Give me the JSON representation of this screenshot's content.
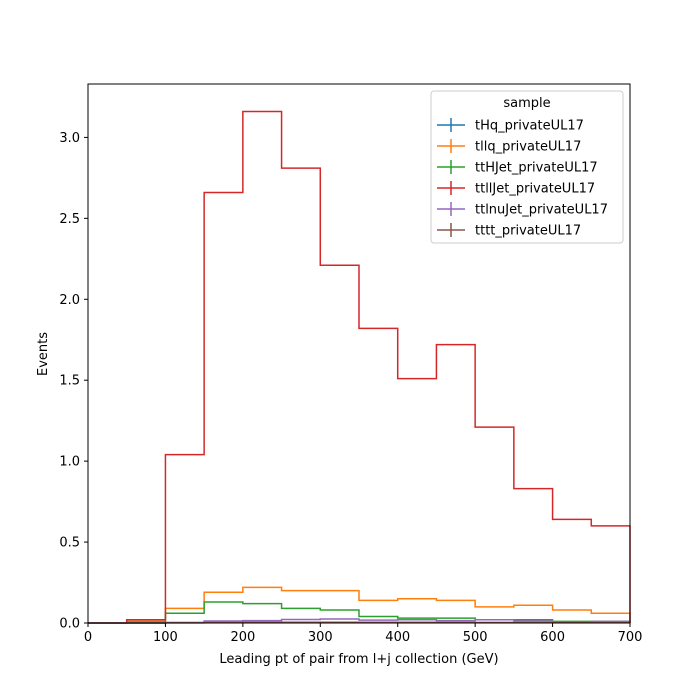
{
  "chart_data": {
    "type": "histogram-step",
    "xlabel": "Leading pt of pair from l+j collection (GeV)",
    "ylabel": "Events",
    "xlim": [
      0,
      700
    ],
    "ylim": [
      0,
      3.33
    ],
    "x_ticks": [
      0,
      100,
      200,
      300,
      400,
      500,
      600,
      700
    ],
    "x_tick_labels": [
      "0",
      "100",
      "200",
      "300",
      "400",
      "500",
      "600",
      "700"
    ],
    "y_ticks": [
      0,
      0.5,
      1.0,
      1.5,
      2.0,
      2.5,
      3.0
    ],
    "y_tick_labels": [
      "0.0",
      "0.5",
      "1.0",
      "1.5",
      "2.0",
      "2.5",
      "3.0"
    ],
    "grid": false,
    "bin_edges": [
      0,
      50,
      100,
      150,
      200,
      250,
      300,
      350,
      400,
      450,
      500,
      550,
      600,
      650,
      700
    ],
    "legend": {
      "title": "sample",
      "position": "top-right"
    },
    "series": [
      {
        "name": "tHq_privateUL17",
        "color": "#1f77b4",
        "values": [
          0,
          0,
          0.002,
          0.004,
          0.005,
          0.005,
          0.005,
          0.004,
          0.004,
          0.004,
          0.003,
          0.003,
          0.002,
          0.002
        ]
      },
      {
        "name": "tllq_privateUL17",
        "color": "#ff7f0e",
        "values": [
          0,
          0.01,
          0.09,
          0.19,
          0.22,
          0.2,
          0.2,
          0.14,
          0.15,
          0.14,
          0.1,
          0.11,
          0.08,
          0.06
        ]
      },
      {
        "name": "ttHJet_privateUL17",
        "color": "#2ca02c",
        "values": [
          0,
          0.005,
          0.06,
          0.13,
          0.12,
          0.09,
          0.08,
          0.04,
          0.03,
          0.03,
          0.02,
          0.02,
          0.01,
          0.01
        ]
      },
      {
        "name": "ttllJet_privateUL17",
        "color": "#d62728",
        "values": [
          0,
          0.02,
          1.04,
          2.66,
          3.16,
          2.81,
          2.21,
          1.82,
          1.51,
          1.72,
          1.21,
          0.83,
          0.64,
          0.6
        ]
      },
      {
        "name": "ttlnuJet_privateUL17",
        "color": "#9467bd",
        "values": [
          0,
          0,
          0.003,
          0.012,
          0.015,
          0.022,
          0.025,
          0.018,
          0.02,
          0.015,
          0.02,
          0.012,
          0.005,
          0.01
        ]
      },
      {
        "name": "tttt_privateUL17",
        "color": "#8c564b",
        "values": [
          0,
          0,
          0.001,
          0.002,
          0.003,
          0.004,
          0.004,
          0.004,
          0.003,
          0.003,
          0.002,
          0.002,
          0.002,
          0.002
        ]
      }
    ]
  }
}
